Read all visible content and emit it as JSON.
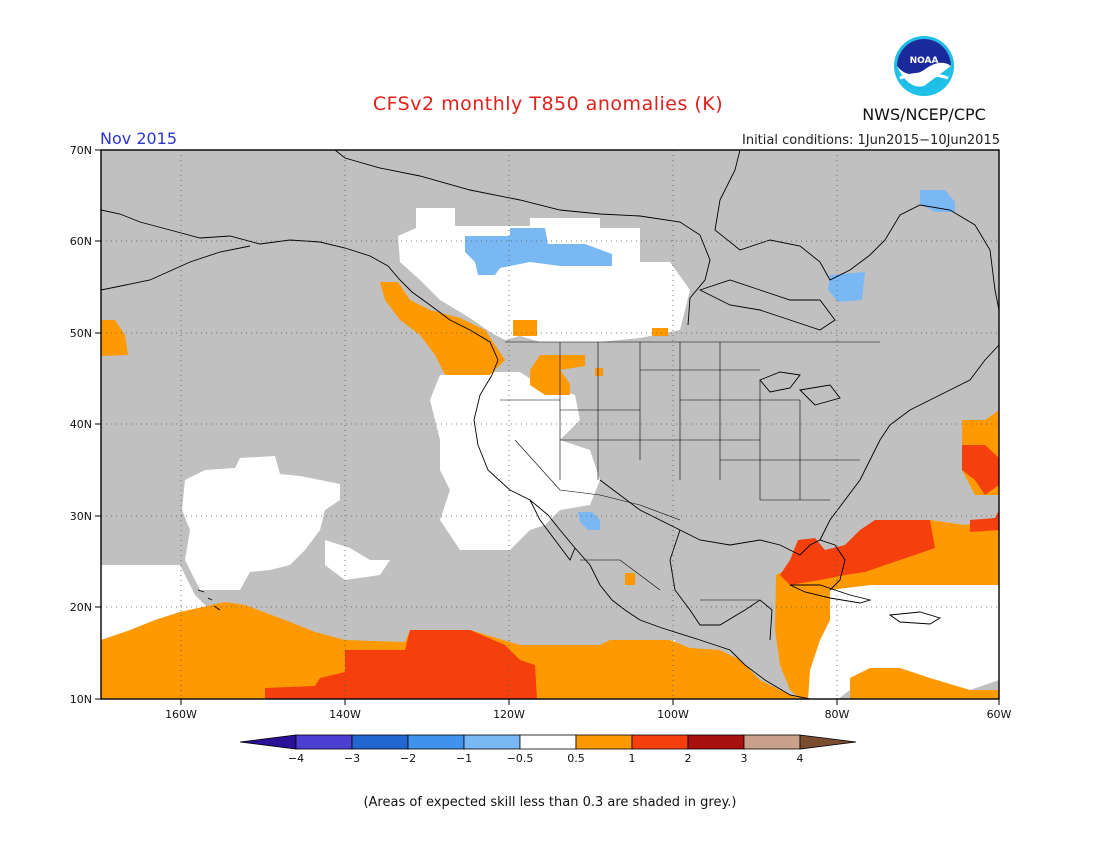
{
  "header": {
    "title": "CFSv2 monthly T850 anomalies (K)",
    "month": "Nov 2015",
    "initial_conditions": "Initial conditions: 1Jun2015−10Jun2015",
    "organization": "NWS/NCEP/CPC",
    "logo_text": "NOAA"
  },
  "map": {
    "lat_labels": [
      "70N",
      "60N",
      "50N",
      "40N",
      "30N",
      "20N",
      "10N"
    ],
    "lon_labels": [
      "160W",
      "140W",
      "120W",
      "100W",
      "80W",
      "60W"
    ],
    "region": "North America and adjacent Pacific/Atlantic, 10N–70N, 170W–60W"
  },
  "colorbar": {
    "ticks": [
      "−4",
      "−3",
      "−2",
      "−1",
      "−0.5",
      "0.5",
      "1",
      "2",
      "3",
      "4"
    ],
    "colors": [
      "#2a0f99",
      "#4b3fd1",
      "#2266d2",
      "#3f93ec",
      "#7ab8f4",
      "#ffffff",
      "#ff9900",
      "#f5400d",
      "#a80f0f",
      "#c9a08a",
      "#7a4c30"
    ]
  },
  "legend_colors": {
    "grey": "#c0c0c0",
    "white": "#ffffff",
    "orange": "#ff9900",
    "red": "#f5400d",
    "light_blue": "#7ab8f4"
  },
  "footnote": "(Areas of expected skill less than 0.3 are shaded in grey.)"
}
